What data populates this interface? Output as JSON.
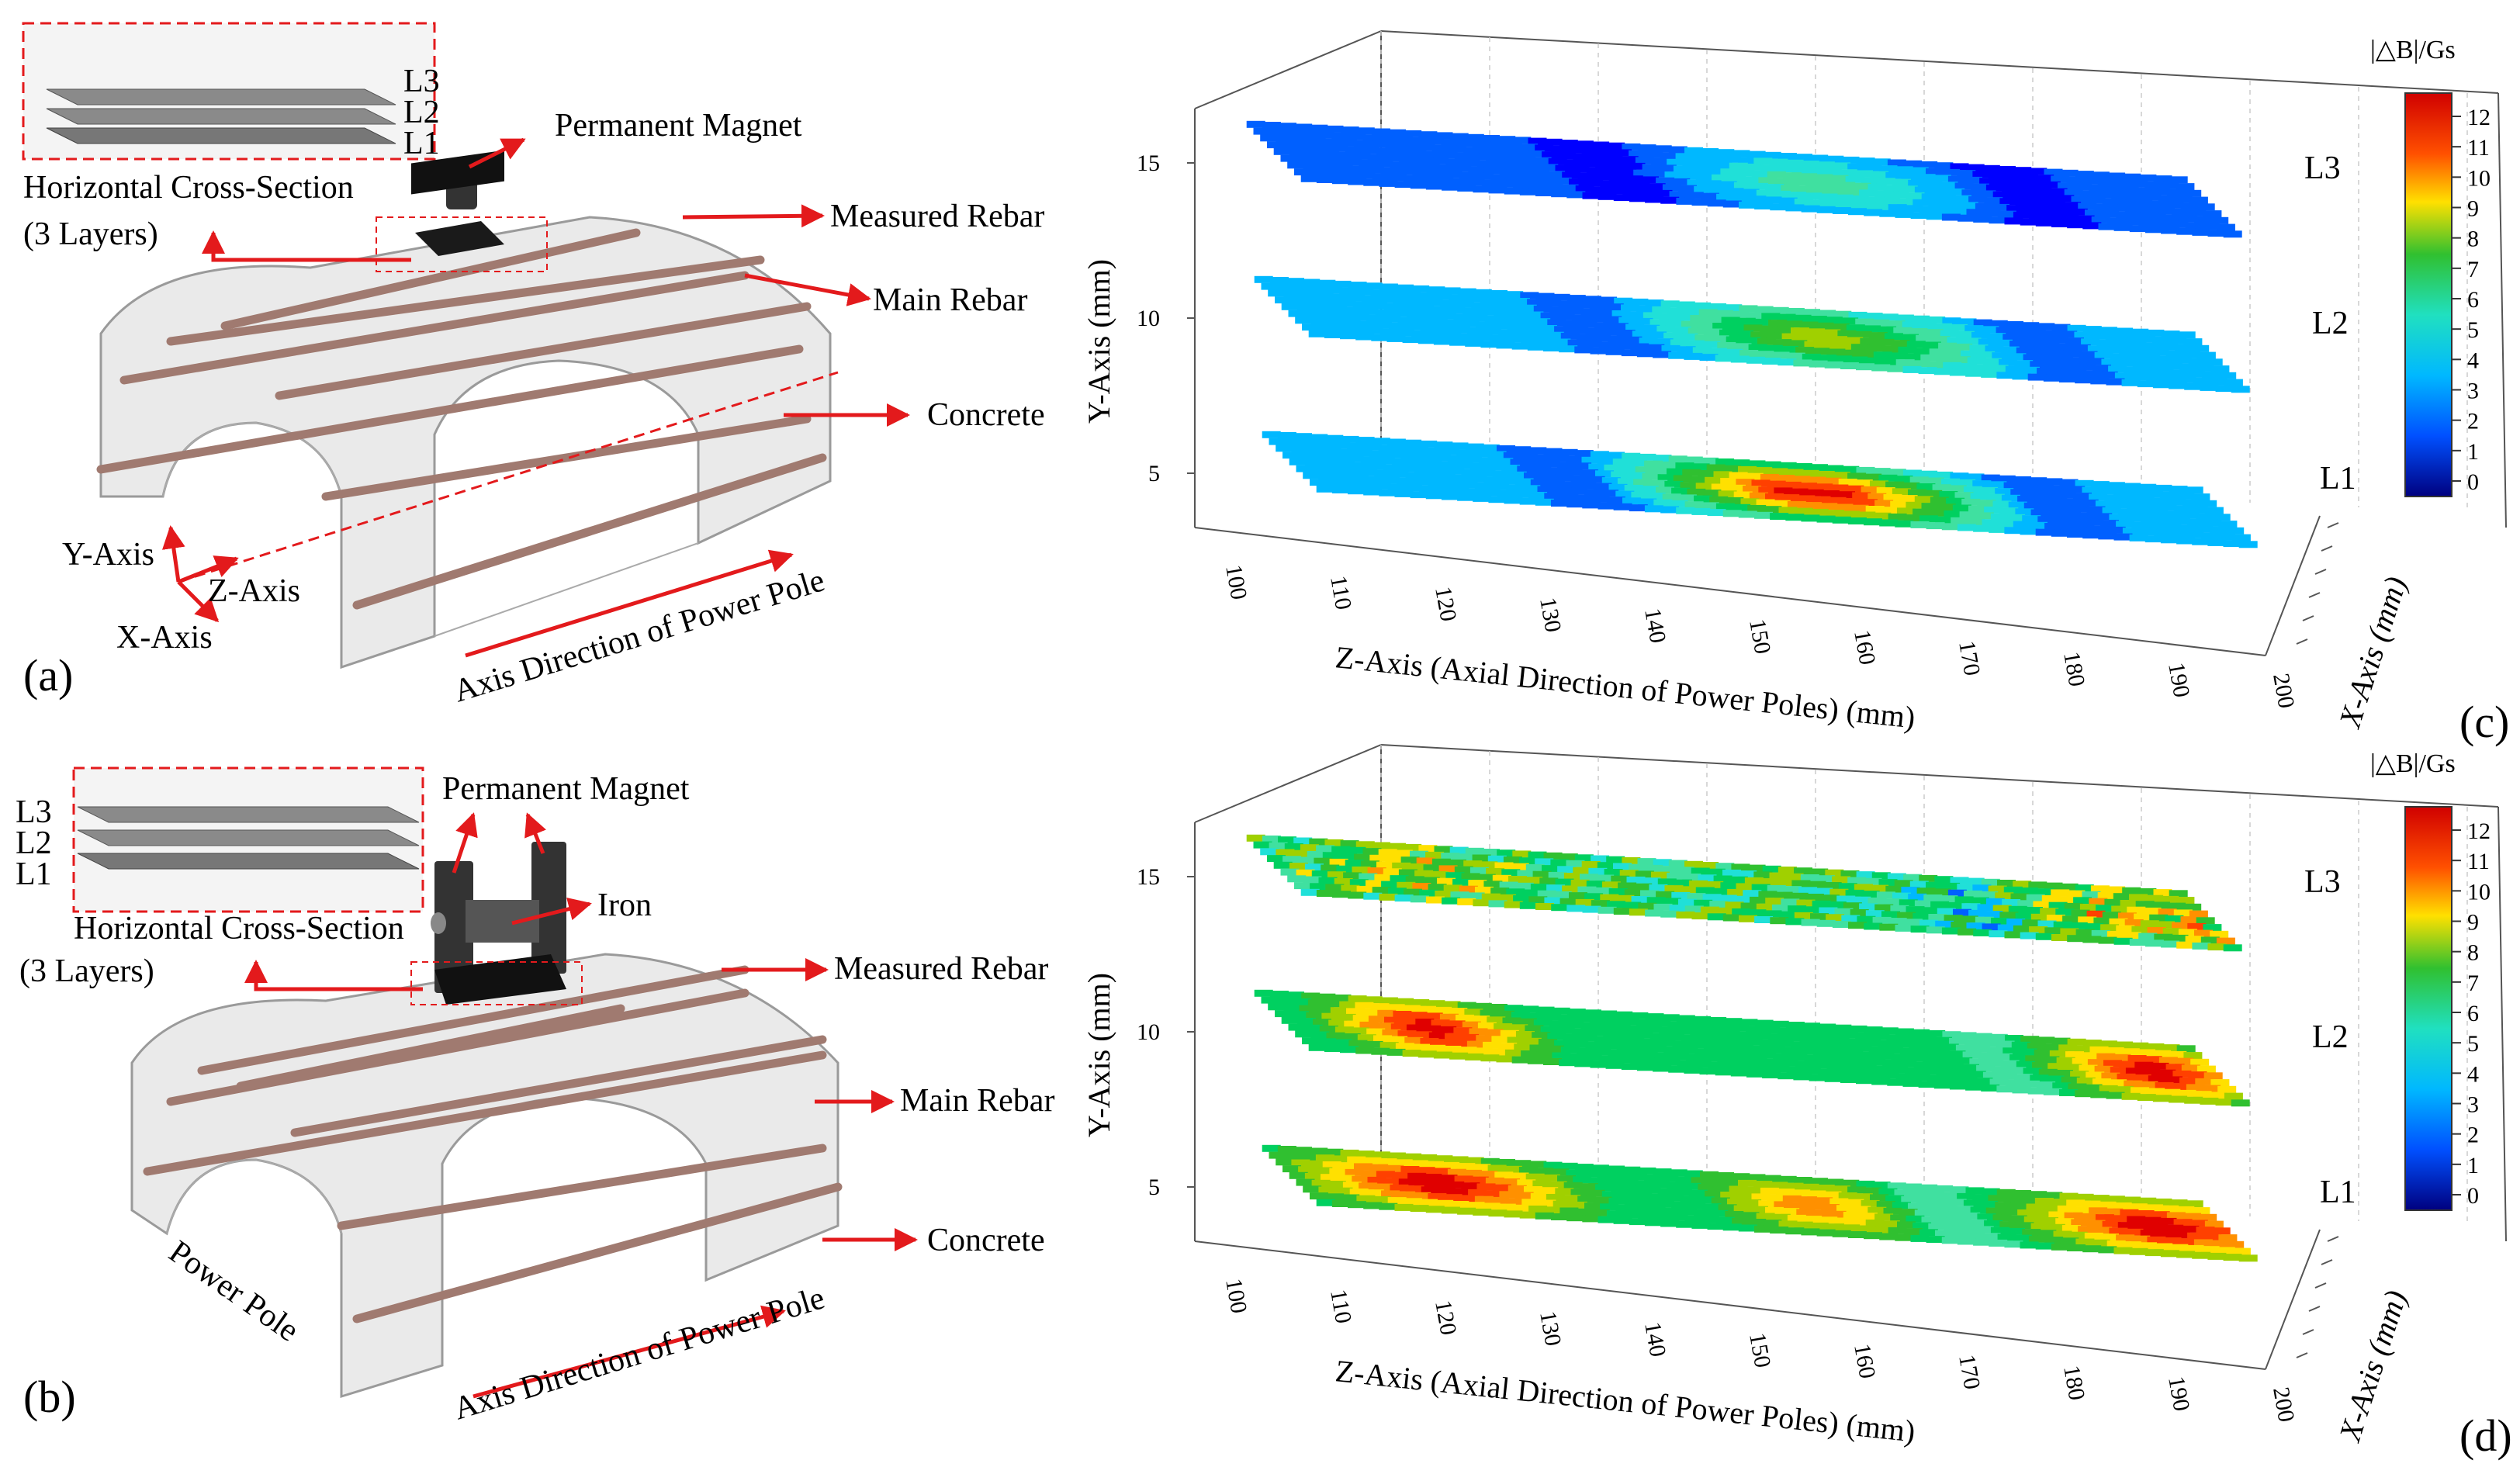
{
  "colors": {
    "arrow": "#e31a1c",
    "concrete": "#d9d9d9",
    "rebar": "#a07a70",
    "magnet": "#2a2a2a",
    "colormap": [
      "#00007f",
      "#0000ff",
      "#0060ff",
      "#00b8ff",
      "#20e0d8",
      "#40e0a0",
      "#00d060",
      "#30c030",
      "#a0d000",
      "#ffe000",
      "#ff9000",
      "#ff4000",
      "#e00000"
    ]
  },
  "panel_a": {
    "label": "(a)",
    "inset_layers": [
      "L3",
      "L2",
      "L1"
    ],
    "inset_title": "Horizontal Cross-Section",
    "inset_subtitle": "(3 Layers)",
    "callouts": {
      "magnet": "Permanent Magnet",
      "measured": "Measured Rebar",
      "main": "Main Rebar",
      "concrete": "Concrete"
    },
    "axes": {
      "y": "Y-Axis",
      "z": "Z-Axis",
      "x": "X-Axis"
    },
    "direction": "Axis Direction of Power Pole"
  },
  "panel_b": {
    "label": "(b)",
    "inset_layers": [
      "L3",
      "L2",
      "L1"
    ],
    "inset_title": "Horizontal Cross-Section",
    "inset_subtitle": "(3 Layers)",
    "callouts": {
      "magnet": "Permanent Magnet",
      "iron": "Iron",
      "measured": "Measured Rebar",
      "main": "Main Rebar",
      "concrete": "Concrete"
    },
    "pole": "Power Pole",
    "direction": "Axis Direction of Power Pole"
  },
  "chart_data": [
    {
      "type": "heatmap",
      "panel": "(c)",
      "colorbar_title": "|△B|/Gs",
      "colorbar_ticks": [
        12,
        11,
        10,
        9,
        8,
        7,
        6,
        5,
        4,
        3,
        2,
        1,
        0
      ],
      "xlabel": "Z-Axis (Axial Direction of Power Poles) (mm)",
      "ylabel": "Y-Axis (mm)",
      "zlabel": "X-Axis (mm)",
      "xticks": [
        "100",
        "110",
        "120",
        "130",
        "140",
        "150",
        "160",
        "170",
        "180",
        "190",
        "200"
      ],
      "yticks": [
        "15",
        "10",
        "5"
      ],
      "layers": [
        {
          "name": "L3",
          "y": 15,
          "hotspots": [
            {
              "z": 160,
              "peak": 5,
              "width": 14
            }
          ],
          "base": 2
        },
        {
          "name": "L2",
          "y": 10,
          "hotspots": [
            {
              "z": 160,
              "peak": 8,
              "width": 15
            }
          ],
          "base": 3
        },
        {
          "name": "L1",
          "y": 5,
          "hotspots": [
            {
              "z": 158,
              "peak": 12,
              "width": 16
            }
          ],
          "base": 3
        }
      ]
    },
    {
      "type": "heatmap",
      "panel": "(d)",
      "colorbar_title": "|△B|/Gs",
      "colorbar_ticks": [
        12,
        11,
        10,
        9,
        8,
        7,
        6,
        5,
        4,
        3,
        2,
        1,
        0
      ],
      "xlabel": "Z-Axis (Axial Direction of Power Poles) (mm)",
      "ylabel": "Y-Axis (mm)",
      "zlabel": "X-Axis (mm)",
      "xticks": [
        "100",
        "110",
        "120",
        "130",
        "140",
        "150",
        "160",
        "170",
        "180",
        "190",
        "200"
      ],
      "yticks": [
        "15",
        "10",
        "5"
      ],
      "layers": [
        {
          "name": "L3",
          "y": 15,
          "hotspots": [
            {
              "z": 118,
              "peak": 8,
              "width": 12
            },
            {
              "z": 195,
              "peak": 9,
              "width": 12
            }
          ],
          "base": 6
        },
        {
          "name": "L2",
          "y": 10,
          "hotspots": [
            {
              "z": 118,
              "peak": 12,
              "width": 10
            },
            {
              "z": 195,
              "peak": 12,
              "width": 10
            }
          ],
          "base": 6
        },
        {
          "name": "L1",
          "y": 5,
          "hotspots": [
            {
              "z": 118,
              "peak": 12,
              "width": 14
            },
            {
              "z": 158,
              "peak": 10,
              "width": 10
            },
            {
              "z": 195,
              "peak": 12,
              "width": 14
            }
          ],
          "base": 6
        }
      ]
    }
  ]
}
